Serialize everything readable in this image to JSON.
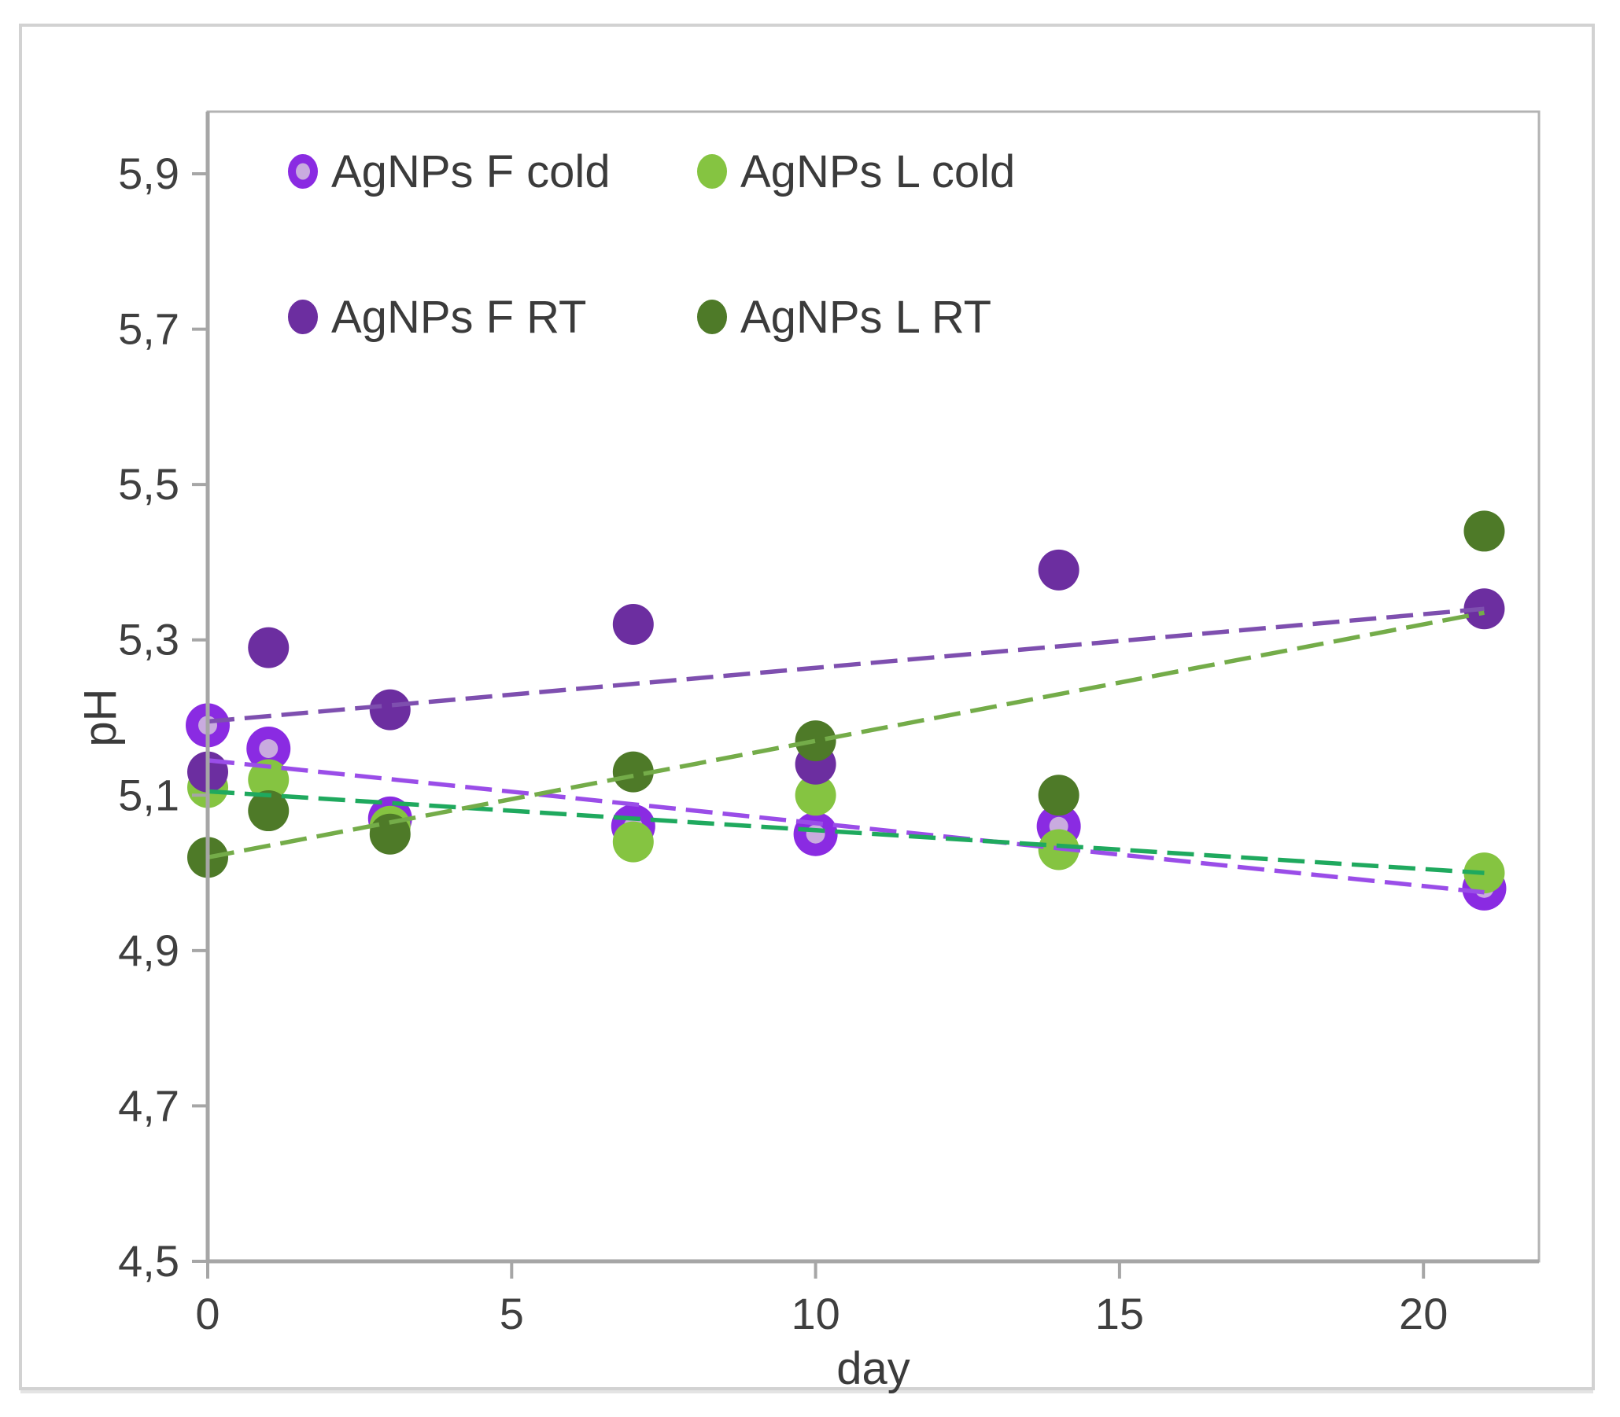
{
  "figure": {
    "background_color": "#ffffff",
    "outer_border_color": "#d2d2d2",
    "plot_border_color": "#b3b3b3",
    "axis_line_color": "#a6a6a6",
    "tick_text_color": "#3f3f3f"
  },
  "chart_data": {
    "type": "scatter",
    "title": "",
    "xlabel": "day",
    "ylabel": "pH",
    "xlim": [
      0,
      21.9
    ],
    "ylim": [
      4.5,
      5.98
    ],
    "grid": false,
    "decimal_separator": ",",
    "x_ticks": {
      "values": [
        0,
        5,
        10,
        15,
        20
      ],
      "labels": [
        "0",
        "5",
        "10",
        "15",
        "20"
      ]
    },
    "y_ticks": {
      "values": [
        4.5,
        4.7,
        4.9,
        5.1,
        5.3,
        5.5,
        5.7,
        5.9
      ],
      "labels": [
        "4,5",
        "4,7",
        "4,9",
        "5,1",
        "5,3",
        "5,5",
        "5,7",
        "5,9"
      ]
    },
    "legend": {
      "position": "inside-top-left",
      "columns": 2
    },
    "x_shared": [
      0,
      1,
      3,
      7,
      10,
      14,
      21
    ],
    "series": [
      {
        "name": "AgNPs F cold",
        "marker": "donut",
        "color": "#8a2be2",
        "inner_color": "#c9abdf",
        "trend_color": "#9a4de8",
        "x": [
          0,
          1,
          3,
          7,
          10,
          14,
          21
        ],
        "y": [
          5.19,
          5.16,
          5.07,
          5.06,
          5.05,
          5.06,
          4.98
        ],
        "trendline": {
          "x0": 0,
          "y0": 5.145,
          "x1": 21,
          "y1": 4.975
        }
      },
      {
        "name": "AgNPs L cold",
        "marker": "circle",
        "color": "#85c441",
        "trend_color": "#1fa95e",
        "x": [
          0,
          1,
          3,
          7,
          10,
          14,
          21
        ],
        "y": [
          5.11,
          5.12,
          5.06,
          5.04,
          5.1,
          5.03,
          5.0
        ],
        "trendline": {
          "x0": 0,
          "y0": 5.105,
          "x1": 21,
          "y1": 5.0
        }
      },
      {
        "name": "AgNPs F RT",
        "marker": "circle",
        "color": "#6c2ea0",
        "trend_color": "#7e4faf",
        "x": [
          0,
          1,
          3,
          7,
          10,
          14,
          21
        ],
        "y": [
          5.13,
          5.29,
          5.21,
          5.32,
          5.14,
          5.39,
          5.34
        ],
        "trendline": {
          "x0": 0,
          "y0": 5.195,
          "x1": 21,
          "y1": 5.34
        }
      },
      {
        "name": "AgNPs L RT",
        "marker": "circle",
        "color": "#4e7a28",
        "trend_color": "#74ac49",
        "x": [
          0,
          1,
          3,
          7,
          10,
          14,
          21
        ],
        "y": [
          5.02,
          5.08,
          5.05,
          5.13,
          5.17,
          5.1,
          5.44
        ],
        "trendline": {
          "x0": 0,
          "y0": 5.02,
          "x1": 21,
          "y1": 5.335
        }
      }
    ]
  }
}
